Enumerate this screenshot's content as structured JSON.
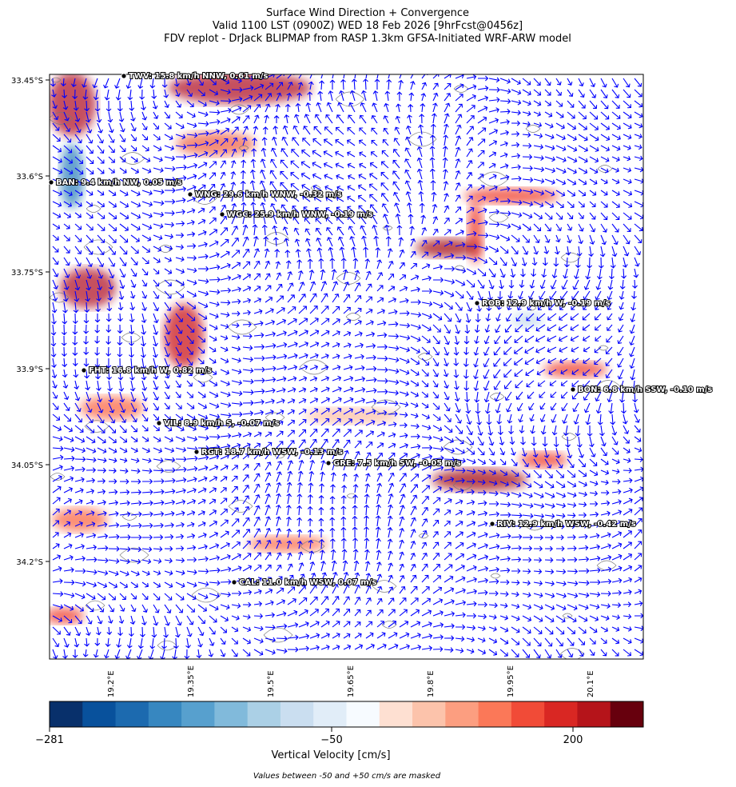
{
  "title": [
    "Surface Wind Direction + Convergence",
    "Valid 1100 LST (0900Z) WED 18 Feb 2026 [9hrFcst@0456z]",
    "FDV replot - DrJack BLIPMAP from RASP 1.3km GFSA-Initiated WRF-ARW model"
  ],
  "map": {
    "yticks": [
      "33.45°S",
      "33.6°S",
      "33.75°S",
      "33.9°S",
      "34.05°S",
      "34.2°S"
    ],
    "xticks": [
      "19.2°E",
      "19.35°E",
      "19.5°E",
      "19.65°E",
      "19.8°E",
      "19.95°E",
      "20.1°E"
    ],
    "stations": [
      "TWV: 15.8 km/h NNW, 0.61 m/s",
      "BAN: 9.4 km/h NW, 0.05 m/s",
      "WNG: 29.6 km/h WNW, -0.32 m/s",
      "WGC: 25.9 km/h WNW, -0.19 m/s",
      "ROB: 12.9 km/h W, -0.19 m/s",
      "FHT: 16.8 km/h W, 0.82 m/s",
      "BON: 6.8 km/h SSW, -0.10 m/s",
      "VIL: 8.9 km/h S, -0.07 m/s",
      "RGT: 18.7 km/h WSW, -0.13 m/s",
      "GRE: 7.5 km/h SW, -0.05 m/s",
      "RIV: 12.9 km/h WSW, -0.42 m/s",
      "CAL: 11.0 km/h WSW, 0.07 m/s"
    ]
  },
  "colorbar": {
    "colors": [
      "#08306b",
      "#08519c",
      "#1c6aaf",
      "#3787c0",
      "#57a0ce",
      "#81badb",
      "#abd0e6",
      "#cadef0",
      "#e1edf8",
      "#f7fbff",
      "#fee0d2",
      "#fcc3ab",
      "#fc9e80",
      "#fb7858",
      "#f14b37",
      "#d92723",
      "#b5141a",
      "#67000d"
    ],
    "ticks": [
      "−281",
      "−50",
      "200"
    ],
    "label": "Vertical Velocity [cm/s]"
  },
  "note": "Values between -50 and +50 cm/s are masked"
}
